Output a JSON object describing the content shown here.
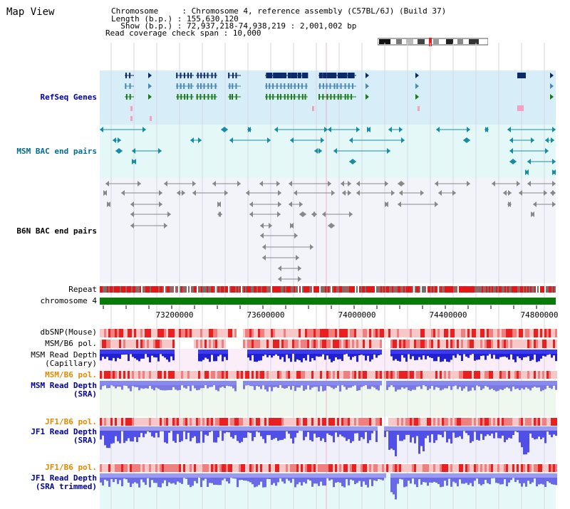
{
  "page": {
    "title": "Map View"
  },
  "info": {
    "chromosome_line": "Chromosome     : Chromosome 4, reference assembly (C57BL/6J) (Build 37)",
    "length_line": "Length (b.p.) : 155,630,120",
    "show_line": "  Show (b.p.) : 72,937,218-74,938,219 : 2,001,002 bp",
    "coverage_line": "Read coverage check span : 10,000"
  },
  "tracks": {
    "refseq": "RefSeq Genes",
    "msm_bac": "MSM BAC end pairs",
    "b6n_bac": "B6N BAC end pairs",
    "repeat": "Repeat",
    "chromosome": "chromosome 4",
    "dbsnp": "dbSNP(Mouse)",
    "msm_b6_pol": "MSM/B6 pol.",
    "msm_read_depth_cap_1": "MSM Read Depth",
    "msm_read_depth_cap_2": "(Capillary)",
    "msm_b6_pol_2": "MSM/B6 pol.",
    "msm_read_depth_sra_1": "MSM Read Depth",
    "msm_read_depth_sra_2": "(SRA)",
    "jf1_b6_pol": "JF1/B6 pol.",
    "jf1_read_depth_sra_1": "JF1 Read Depth",
    "jf1_read_depth_sra_2": "(SRA)",
    "jf1_b6_pol_2": "JF1/B6 pol.",
    "jf1_read_depth_trim_1": "JF1 Read Depth",
    "jf1_read_depth_trim_2": "(SRA trimmed)"
  },
  "axis": {
    "ticks": [
      "73200000",
      "73600000",
      "74000000",
      "74400000",
      "74800000"
    ]
  },
  "colors": {
    "refseq_bg": "#d7eef8",
    "msm_bg": "#e4f8f8",
    "b6n_bg": "#f2f4fa",
    "chromosome": "#0a7a0a",
    "depth_blue": "#3a3af0",
    "depth_light": "#8888f0",
    "pol_label": "#e08a00",
    "blue_label": "#0000a0",
    "teal_label": "#006d8f"
  }
}
